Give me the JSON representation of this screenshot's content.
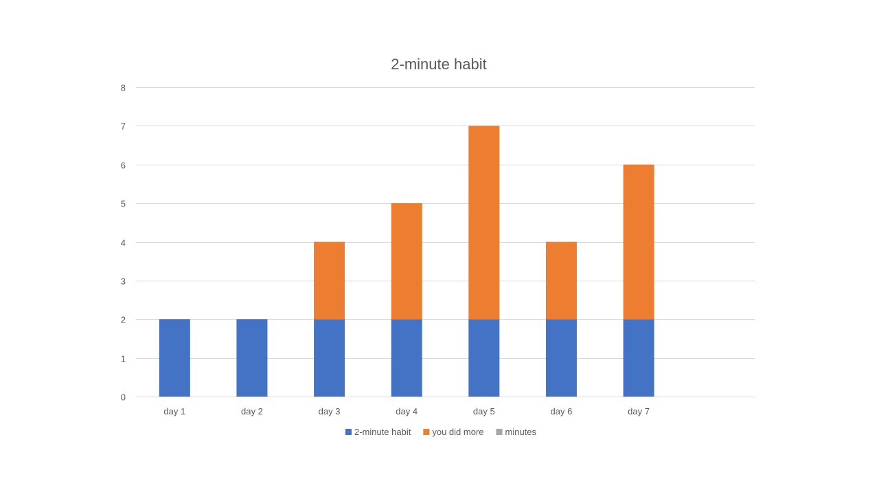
{
  "chart_data": {
    "type": "bar",
    "stacked": true,
    "title": "2-minute habit",
    "xlabel": "",
    "ylabel": "",
    "categories": [
      "day 1",
      "day 2",
      "day 3",
      "day 4",
      "day 5",
      "day 6",
      "day 7",
      ""
    ],
    "ylim": [
      0,
      8
    ],
    "yticks": [
      0,
      1,
      2,
      3,
      4,
      5,
      6,
      7,
      8
    ],
    "grid": true,
    "legend_position": "bottom",
    "series": [
      {
        "name": "2-minute habit",
        "color": "#4472C4",
        "values": [
          2,
          2,
          2,
          2,
          2,
          2,
          2,
          null
        ]
      },
      {
        "name": "you did more",
        "color": "#ED7D31",
        "values": [
          0,
          0,
          2,
          3,
          5,
          2,
          4,
          null
        ]
      },
      {
        "name": "minutes",
        "color": "#A5A5A5",
        "values": [
          null,
          null,
          null,
          null,
          null,
          null,
          null,
          null
        ]
      }
    ]
  }
}
